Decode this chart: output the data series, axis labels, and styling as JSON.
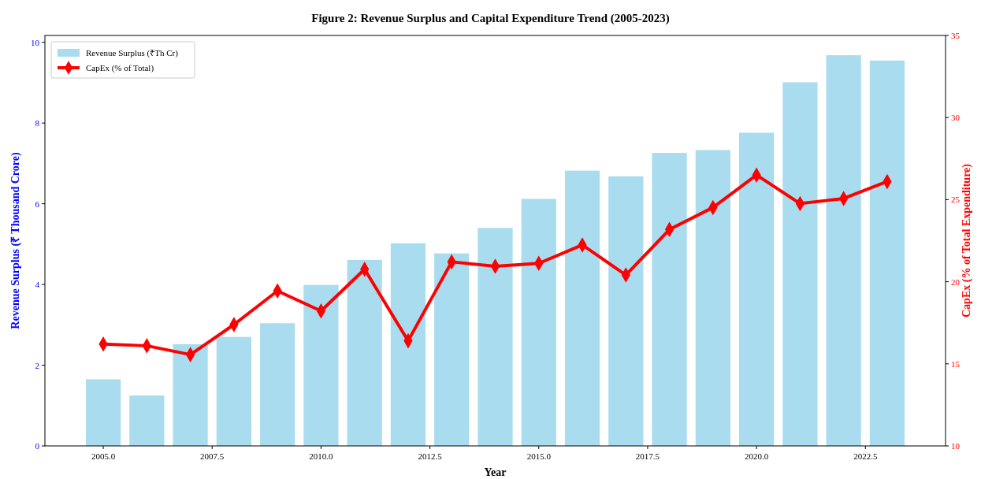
{
  "chart_data": {
    "type": "bar",
    "title": "Figure 2: Revenue Surplus and Capital Expenditure Trend (2005-2023)",
    "xlabel": "Year",
    "ylabel": "Revenue Surplus (₹ Thousand Crore)",
    "y2label": "CapEx (% of Total Expenditure)",
    "x": [
      2005,
      2006,
      2007,
      2008,
      2009,
      2010,
      2011,
      2012,
      2013,
      2014,
      2015,
      2016,
      2017,
      2018,
      2019,
      2020,
      2021,
      2022,
      2023
    ],
    "xlim": [
      2003.66,
      2024.34
    ],
    "xticks": [
      {
        "value": 2005,
        "label": "2005.0"
      },
      {
        "value": 2007.5,
        "label": "2007.5"
      },
      {
        "value": 2010,
        "label": "2010.0"
      },
      {
        "value": 2012.5,
        "label": "2012.5"
      },
      {
        "value": 2015,
        "label": "2015.0"
      },
      {
        "value": 2017.5,
        "label": "2017.5"
      },
      {
        "value": 2020,
        "label": "2020.0"
      },
      {
        "value": 2022.5,
        "label": "2022.5"
      }
    ],
    "ylim": [
      0,
      10.17
    ],
    "yticks": [
      0,
      2,
      4,
      6,
      8,
      10
    ],
    "y2lim": [
      10,
      35
    ],
    "y2ticks": [
      10,
      15,
      20,
      25,
      30,
      35
    ],
    "series": [
      {
        "name": "Revenue Surplus (₹Th Cr)",
        "color": "#a9dcef",
        "values": [
          1.65,
          1.25,
          2.52,
          2.7,
          3.04,
          3.99,
          4.61,
          5.02,
          4.77,
          5.4,
          6.12,
          6.82,
          6.68,
          7.26,
          7.33,
          7.76,
          9.01,
          9.68,
          9.55
        ]
      },
      {
        "name": "CapEx (% of Total)",
        "type": "line",
        "axis": "y2",
        "color": "#ff0000",
        "marker": "diamond",
        "values": [
          16.2,
          16.1,
          15.56,
          17.39,
          19.44,
          18.22,
          20.76,
          16.4,
          21.21,
          20.94,
          21.12,
          22.24,
          20.41,
          23.18,
          24.52,
          26.5,
          24.76,
          25.07,
          26.1
        ]
      }
    ],
    "legend": "top left",
    "grid": false
  }
}
